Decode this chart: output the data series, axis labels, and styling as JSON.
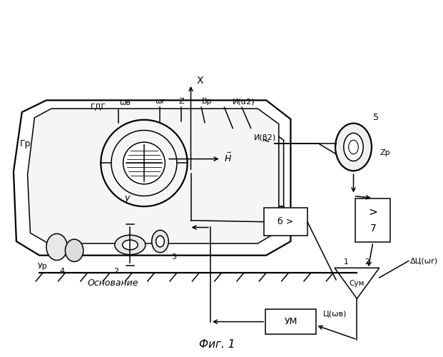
{
  "bg_color": "#ffffff",
  "line_color": "#000000",
  "fig_caption": "Фиг. 1",
  "label_gdg": "ГДГ",
  "label_gr": "Гр",
  "label_omegav": "ωв",
  "label_omegar": "ωr",
  "label_Z": "Z",
  "label_VP": "Вр",
  "label_Ialpha2": "И(α2)",
  "label_Ibeta2": "И(β2)",
  "label_Y": "y",
  "label_X": "X",
  "label_Zp": "Zр",
  "label_Yp": "Ур",
  "label_n2": "2",
  "label_n3": "3",
  "label_n4": "4",
  "label_n5": "5",
  "label_block6": "б >",
  "label_block7": "7",
  "label_gt": ">",
  "label_sum": "Сум",
  "label_um": "УМ",
  "label_uomegav": "Ц(ωв)",
  "label_deltau": "ΔЦ(ωr)",
  "label_osnov": "Основание",
  "label_1": "1",
  "label_2": "2"
}
